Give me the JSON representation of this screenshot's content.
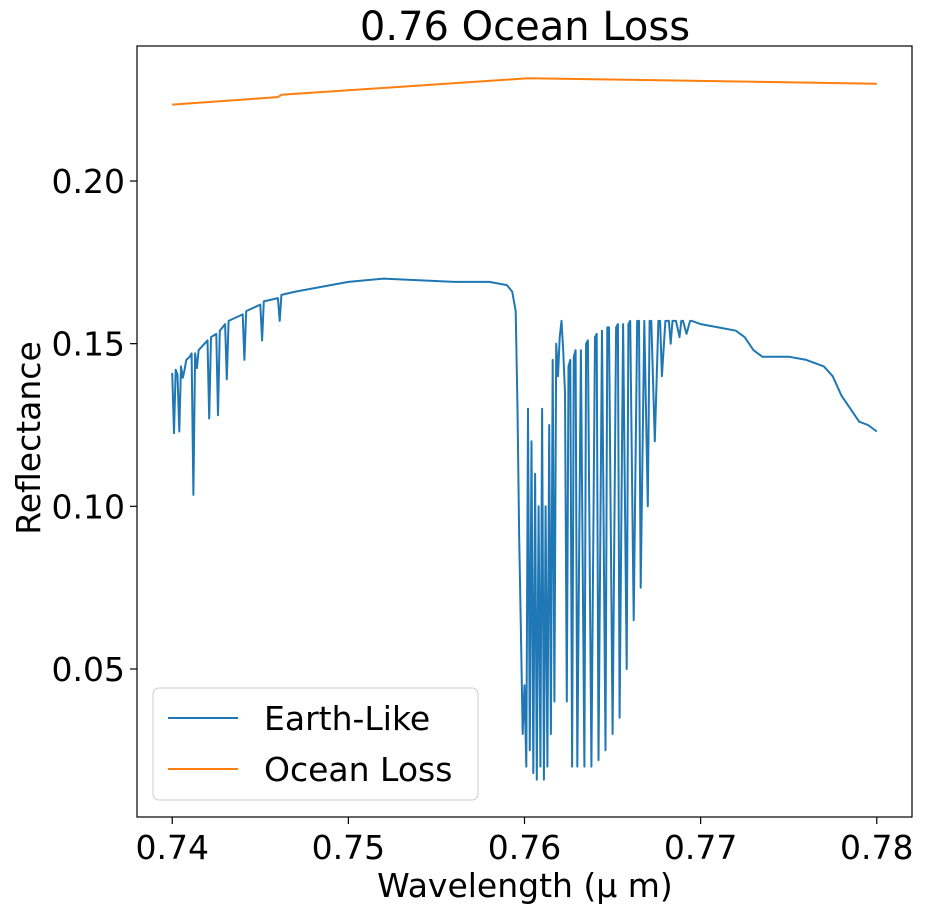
{
  "chart_data": {
    "type": "line",
    "title": "0.76 Ocean Loss",
    "xlabel": "Wavelength (μ m)",
    "ylabel": "Reflectance",
    "xlim": [
      0.738,
      0.782
    ],
    "ylim": [
      0.0045,
      0.2415
    ],
    "x_ticks": [
      0.74,
      0.75,
      0.76,
      0.77,
      0.78
    ],
    "x_tick_labels": [
      "0.74",
      "0.75",
      "0.76",
      "0.77",
      "0.78"
    ],
    "y_ticks": [
      0.05,
      0.1,
      0.15,
      0.2
    ],
    "y_tick_labels": [
      "0.05",
      "0.10",
      "0.15",
      "0.20"
    ],
    "grid": false,
    "legend": "lower-left",
    "series": [
      {
        "name": "Earth-Like",
        "color": "#1f77b4",
        "x": [
          0.74,
          0.7401,
          0.7402,
          0.7403,
          0.7404,
          0.7405,
          0.7406,
          0.7407,
          0.7408,
          0.741,
          0.7411,
          0.7412,
          0.7413,
          0.7414,
          0.7415,
          0.742,
          0.7421,
          0.7422,
          0.7425,
          0.7426,
          0.7427,
          0.743,
          0.7431,
          0.7432,
          0.744,
          0.7441,
          0.7442,
          0.745,
          0.7451,
          0.7452,
          0.746,
          0.7461,
          0.7462,
          0.747,
          0.748,
          0.75,
          0.752,
          0.754,
          0.756,
          0.758,
          0.759,
          0.7593,
          0.7595,
          0.7596,
          0.7597,
          0.7598,
          0.7599,
          0.76,
          0.7601,
          0.7602,
          0.7603,
          0.7604,
          0.7605,
          0.7606,
          0.7607,
          0.7608,
          0.7609,
          0.761,
          0.7611,
          0.7612,
          0.7613,
          0.7614,
          0.7615,
          0.7616,
          0.7617,
          0.7618,
          0.7619,
          0.762,
          0.7621,
          0.7622,
          0.7623,
          0.7624,
          0.7625,
          0.7626,
          0.7627,
          0.7628,
          0.7629,
          0.763,
          0.7632,
          0.7634,
          0.7635,
          0.7636,
          0.7638,
          0.764,
          0.7641,
          0.7642,
          0.7644,
          0.7646,
          0.7647,
          0.7648,
          0.765,
          0.7652,
          0.7653,
          0.7654,
          0.7656,
          0.7658,
          0.7659,
          0.766,
          0.7662,
          0.7664,
          0.7665,
          0.7666,
          0.7668,
          0.767,
          0.7671,
          0.7672,
          0.7674,
          0.7676,
          0.7677,
          0.7678,
          0.768,
          0.7682,
          0.7683,
          0.7684,
          0.7686,
          0.7688,
          0.7689,
          0.769,
          0.7692,
          0.7694,
          0.7695,
          0.77,
          0.771,
          0.772,
          0.7725,
          0.773,
          0.7735,
          0.774,
          0.775,
          0.776,
          0.7765,
          0.777,
          0.7775,
          0.778,
          0.779,
          0.7795,
          0.78
        ],
        "y": [
          0.141,
          0.1225,
          0.142,
          0.1405,
          0.123,
          0.143,
          0.1395,
          0.142,
          0.145,
          0.146,
          0.147,
          0.1035,
          0.147,
          0.1425,
          0.148,
          0.151,
          0.127,
          0.152,
          0.153,
          0.128,
          0.154,
          0.156,
          0.139,
          0.157,
          0.159,
          0.145,
          0.16,
          0.162,
          0.151,
          0.163,
          0.164,
          0.157,
          0.165,
          0.166,
          0.167,
          0.169,
          0.17,
          0.1695,
          0.169,
          0.169,
          0.168,
          0.166,
          0.16,
          0.13,
          0.09,
          0.06,
          0.03,
          0.045,
          0.02,
          0.13,
          0.025,
          0.12,
          0.018,
          0.11,
          0.016,
          0.1,
          0.02,
          0.13,
          0.016,
          0.1,
          0.02,
          0.125,
          0.03,
          0.145,
          0.04,
          0.15,
          0.14,
          0.152,
          0.157,
          0.148,
          0.135,
          0.04,
          0.143,
          0.145,
          0.02,
          0.146,
          0.148,
          0.02,
          0.148,
          0.02,
          0.15,
          0.151,
          0.02,
          0.152,
          0.153,
          0.022,
          0.154,
          0.025,
          0.155,
          0.155,
          0.03,
          0.155,
          0.156,
          0.035,
          0.156,
          0.05,
          0.156,
          0.157,
          0.065,
          0.157,
          0.157,
          0.075,
          0.157,
          0.1,
          0.157,
          0.157,
          0.12,
          0.157,
          0.157,
          0.14,
          0.157,
          0.157,
          0.15,
          0.157,
          0.157,
          0.152,
          0.157,
          0.157,
          0.153,
          0.157,
          0.157,
          0.156,
          0.155,
          0.154,
          0.152,
          0.148,
          0.146,
          0.146,
          0.146,
          0.145,
          0.144,
          0.143,
          0.14,
          0.134,
          0.126,
          0.125,
          0.123
        ]
      },
      {
        "name": "Ocean Loss",
        "color": "#ff7f0e",
        "x": [
          0.74,
          0.746,
          0.7462,
          0.76,
          0.7602,
          0.78
        ],
        "y": [
          0.2235,
          0.2258,
          0.2265,
          0.2315,
          0.2316,
          0.2299
        ]
      }
    ]
  }
}
